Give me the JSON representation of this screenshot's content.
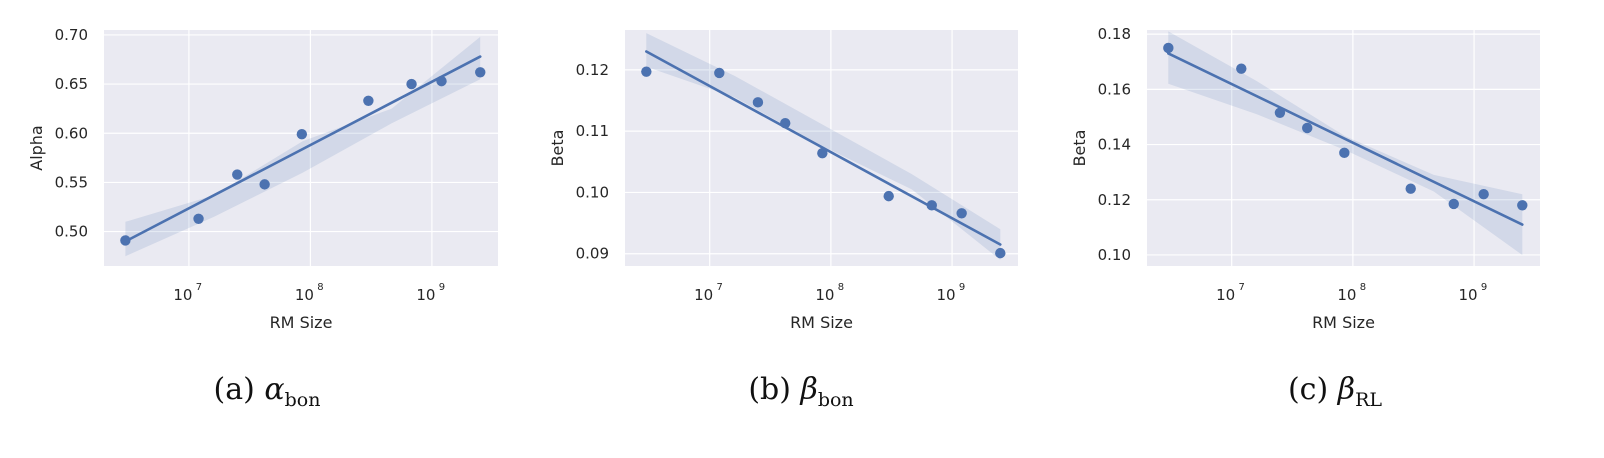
{
  "colors": {
    "background": "#eaeaf2",
    "grid": "#ffffff",
    "series": "#4c72b0",
    "band": "#4c72b0"
  },
  "chart_data": [
    {
      "type": "scatter",
      "caption": {
        "prefix": "(a)",
        "symbol": "α",
        "subscript": "bon"
      },
      "xlabel": "RM Size",
      "ylabel": "Alpha",
      "xscale": "log",
      "xlim": [
        2000000,
        3500000000
      ],
      "ylim": [
        0.465,
        0.705
      ],
      "xticks": [
        {
          "value": 10000000,
          "base": "10",
          "exp": "7"
        },
        {
          "value": 100000000,
          "base": "10",
          "exp": "8"
        },
        {
          "value": 1000000000,
          "base": "10",
          "exp": "9"
        }
      ],
      "yticks": [
        0.5,
        0.55,
        0.6,
        0.65,
        0.7
      ],
      "ytick_labels": [
        "0.50",
        "0.55",
        "0.60",
        "0.65",
        "0.70"
      ],
      "grid": true,
      "x": [
        3000000,
        12000000,
        25000000,
        42000000,
        85000000,
        300000000,
        680000000,
        1200000000,
        2500000000
      ],
      "y": [
        0.491,
        0.513,
        0.558,
        0.548,
        0.599,
        0.633,
        0.65,
        0.653,
        0.662
      ],
      "fit": {
        "start": [
          3000000,
          0.49
        ],
        "end": [
          2500000000,
          0.678
        ]
      },
      "ci_band": {
        "lower": [
          0.475,
          0.515,
          0.56,
          0.61,
          0.655
        ],
        "upper": [
          0.51,
          0.537,
          0.592,
          0.625,
          0.698
        ]
      }
    },
    {
      "type": "scatter",
      "caption": {
        "prefix": "(b)",
        "symbol": "β",
        "subscript": "bon"
      },
      "xlabel": "RM Size",
      "ylabel": "Beta",
      "xscale": "log",
      "xlim": [
        2000000,
        3500000000
      ],
      "ylim": [
        0.088,
        0.1265
      ],
      "xticks": [
        {
          "value": 10000000,
          "base": "10",
          "exp": "7"
        },
        {
          "value": 100000000,
          "base": "10",
          "exp": "8"
        },
        {
          "value": 1000000000,
          "base": "10",
          "exp": "9"
        }
      ],
      "yticks": [
        0.09,
        0.1,
        0.11,
        0.12
      ],
      "ytick_labels": [
        "0.09",
        "0.10",
        "0.11",
        "0.12"
      ],
      "grid": true,
      "x": [
        3000000,
        12000000,
        25000000,
        42000000,
        85000000,
        300000000,
        680000000,
        1200000000,
        2500000000
      ],
      "y": [
        0.1197,
        0.1195,
        0.1147,
        0.1113,
        0.1064,
        0.0994,
        0.0979,
        0.0966,
        0.0901
      ],
      "fit": {
        "start": [
          3000000,
          0.123
        ],
        "end": [
          2500000000,
          0.0915
        ]
      },
      "ci_band": {
        "lower": [
          0.1205,
          0.1155,
          0.1075,
          0.1005,
          0.089
        ],
        "upper": [
          0.126,
          0.119,
          0.111,
          0.103,
          0.094
        ]
      }
    },
    {
      "type": "scatter",
      "caption": {
        "prefix": "(c)",
        "symbol": "β",
        "subscript": "RL"
      },
      "xlabel": "RM Size",
      "ylabel": "Beta",
      "xscale": "log",
      "xlim": [
        2000000,
        3500000000
      ],
      "ylim": [
        0.096,
        0.1815
      ],
      "xticks": [
        {
          "value": 10000000,
          "base": "10",
          "exp": "7"
        },
        {
          "value": 100000000,
          "base": "10",
          "exp": "8"
        },
        {
          "value": 1000000000,
          "base": "10",
          "exp": "9"
        }
      ],
      "yticks": [
        0.1,
        0.12,
        0.14,
        0.16,
        0.18
      ],
      "ytick_labels": [
        "0.10",
        "0.12",
        "0.14",
        "0.16",
        "0.18"
      ],
      "grid": true,
      "x": [
        3000000,
        12000000,
        25000000,
        42000000,
        85000000,
        300000000,
        680000000,
        1200000000,
        2500000000
      ],
      "y": [
        0.175,
        0.1675,
        0.1515,
        0.146,
        0.137,
        0.124,
        0.1185,
        0.122,
        0.118
      ],
      "fit": {
        "start": [
          3000000,
          0.173
        ],
        "end": [
          2500000000,
          0.111
        ]
      },
      "ci_band": {
        "lower": [
          0.162,
          0.151,
          0.138,
          0.123,
          0.1
        ],
        "upper": [
          0.181,
          0.163,
          0.143,
          0.129,
          0.122
        ]
      }
    }
  ]
}
